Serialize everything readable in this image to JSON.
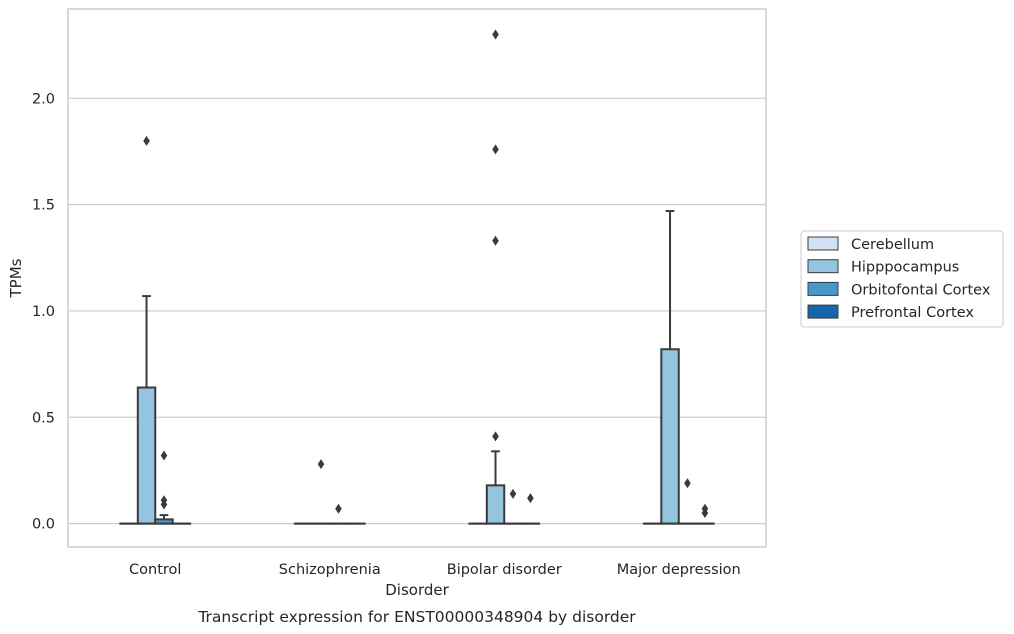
{
  "chart_data": {
    "type": "box",
    "title": "",
    "caption": "Transcript expression for ENST00000348904 by disorder",
    "xlabel": "Disorder",
    "ylabel": "TPMs",
    "ylim": [
      -0.11,
      2.42
    ],
    "yticks": [
      "0.0",
      "0.5",
      "1.0",
      "1.5",
      "2.0"
    ],
    "grid": "horizontal",
    "legend_position": "right",
    "categories": [
      "Control",
      "Schizophrenia",
      "Bipolar disorder",
      "Major depression"
    ],
    "series": [
      {
        "name": "Cerebellum",
        "color": "#d0e1f2",
        "boxes": [
          {
            "q1": 0,
            "median": 0,
            "q3": 0,
            "whisker_low": 0,
            "whisker_high": 0,
            "outliers": []
          },
          {
            "q1": 0,
            "median": 0,
            "q3": 0,
            "whisker_low": 0,
            "whisker_high": 0,
            "outliers": []
          },
          {
            "q1": 0,
            "median": 0,
            "q3": 0,
            "whisker_low": 0,
            "whisker_high": 0,
            "outliers": []
          },
          {
            "q1": 0,
            "median": 0,
            "q3": 0,
            "whisker_low": 0,
            "whisker_high": 0,
            "outliers": []
          }
        ]
      },
      {
        "name": "Hipppocampus",
        "color": "#94c4df",
        "boxes": [
          {
            "q1": 0,
            "median": 0,
            "q3": 0.64,
            "whisker_low": 0,
            "whisker_high": 1.07,
            "outliers": [
              1.8
            ]
          },
          {
            "q1": 0,
            "median": 0,
            "q3": 0,
            "whisker_low": 0,
            "whisker_high": 0,
            "outliers": [
              0.28
            ]
          },
          {
            "q1": 0,
            "median": 0,
            "q3": 0.18,
            "whisker_low": 0,
            "whisker_high": 0.34,
            "outliers": [
              0.41,
              1.33,
              1.76,
              2.3
            ]
          },
          {
            "q1": 0,
            "median": 0,
            "q3": 0.82,
            "whisker_low": 0,
            "whisker_high": 1.47,
            "outliers": []
          }
        ]
      },
      {
        "name": "Orbitofontal Cortex",
        "color": "#4a98c9",
        "boxes": [
          {
            "q1": 0,
            "median": 0,
            "q3": 0.02,
            "whisker_low": 0,
            "whisker_high": 0.04,
            "outliers": [
              0.09,
              0.11,
              0.32
            ]
          },
          {
            "q1": 0,
            "median": 0,
            "q3": 0,
            "whisker_low": 0,
            "whisker_high": 0,
            "outliers": [
              0.07
            ]
          },
          {
            "q1": 0,
            "median": 0,
            "q3": 0,
            "whisker_low": 0,
            "whisker_high": 0,
            "outliers": [
              0.14
            ]
          },
          {
            "q1": 0,
            "median": 0,
            "q3": 0,
            "whisker_low": 0,
            "whisker_high": 0,
            "outliers": [
              0.19
            ]
          }
        ]
      },
      {
        "name": "Prefrontal Cortex",
        "color": "#1764ab",
        "boxes": [
          {
            "q1": 0,
            "median": 0,
            "q3": 0,
            "whisker_low": 0,
            "whisker_high": 0,
            "outliers": []
          },
          {
            "q1": 0,
            "median": 0,
            "q3": 0,
            "whisker_low": 0,
            "whisker_high": 0,
            "outliers": []
          },
          {
            "q1": 0,
            "median": 0,
            "q3": 0,
            "whisker_low": 0,
            "whisker_high": 0,
            "outliers": [
              0.12
            ]
          },
          {
            "q1": 0,
            "median": 0,
            "q3": 0,
            "whisker_low": 0,
            "whisker_high": 0,
            "outliers": [
              0.05,
              0.07
            ]
          }
        ]
      }
    ]
  }
}
